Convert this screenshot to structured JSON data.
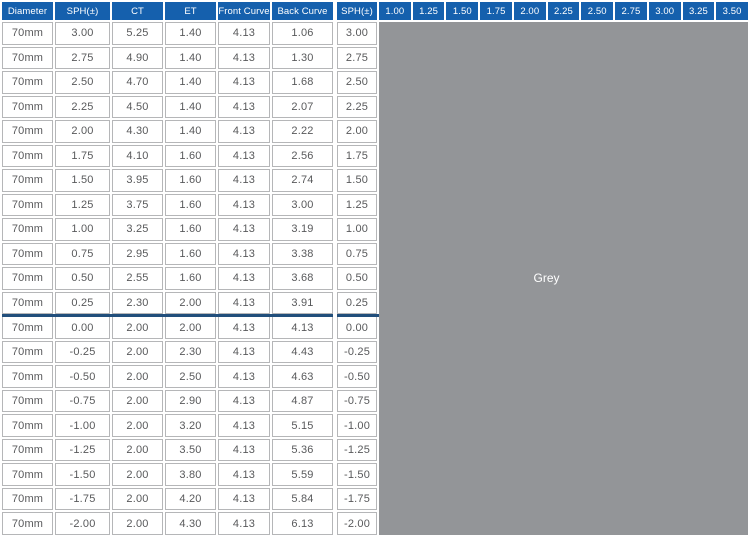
{
  "colors": {
    "header_bg": "#1560AD",
    "grey_fill": "#939598",
    "divider": "#214E7B",
    "cell_border": "#B5B6B8",
    "text": "#58595B"
  },
  "left_table": {
    "headers": [
      "Diameter",
      "SPH(±)",
      "CT",
      "ET",
      "Front Curve",
      "Back Curve"
    ],
    "rows": [
      [
        "70mm",
        "3.00",
        "5.25",
        "1.40",
        "4.13",
        "1.06"
      ],
      [
        "70mm",
        "2.75",
        "4.90",
        "1.40",
        "4.13",
        "1.30"
      ],
      [
        "70mm",
        "2.50",
        "4.70",
        "1.40",
        "4.13",
        "1.68"
      ],
      [
        "70mm",
        "2.25",
        "4.50",
        "1.40",
        "4.13",
        "2.07"
      ],
      [
        "70mm",
        "2.00",
        "4.30",
        "1.40",
        "4.13",
        "2.22"
      ],
      [
        "70mm",
        "1.75",
        "4.10",
        "1.60",
        "4.13",
        "2.56"
      ],
      [
        "70mm",
        "1.50",
        "3.95",
        "1.60",
        "4.13",
        "2.74"
      ],
      [
        "70mm",
        "1.25",
        "3.75",
        "1.60",
        "4.13",
        "3.00"
      ],
      [
        "70mm",
        "1.00",
        "3.25",
        "1.60",
        "4.13",
        "3.19"
      ],
      [
        "70mm",
        "0.75",
        "2.95",
        "1.60",
        "4.13",
        "3.38"
      ],
      [
        "70mm",
        "0.50",
        "2.55",
        "1.60",
        "4.13",
        "3.68"
      ],
      [
        "70mm",
        "0.25",
        "2.30",
        "2.00",
        "4.13",
        "3.91"
      ],
      [
        "70mm",
        "0.00",
        "2.00",
        "2.00",
        "4.13",
        "4.13"
      ],
      [
        "70mm",
        "-0.25",
        "2.00",
        "2.30",
        "4.13",
        "4.43"
      ],
      [
        "70mm",
        "-0.50",
        "2.00",
        "2.50",
        "4.13",
        "4.63"
      ],
      [
        "70mm",
        "-0.75",
        "2.00",
        "2.90",
        "4.13",
        "4.87"
      ],
      [
        "70mm",
        "-1.00",
        "2.00",
        "3.20",
        "4.13",
        "5.15"
      ],
      [
        "70mm",
        "-1.25",
        "2.00",
        "3.50",
        "4.13",
        "5.36"
      ],
      [
        "70mm",
        "-1.50",
        "2.00",
        "3.80",
        "4.13",
        "5.59"
      ],
      [
        "70mm",
        "-1.75",
        "2.00",
        "4.20",
        "4.13",
        "5.84"
      ],
      [
        "70mm",
        "-2.00",
        "2.00",
        "4.30",
        "4.13",
        "6.13"
      ]
    ],
    "divider_after_row": 11
  },
  "right_table": {
    "headers": [
      "SPH(±)",
      "1.00",
      "1.25",
      "1.50",
      "1.75",
      "2.00",
      "2.25",
      "2.50",
      "2.75",
      "3.00",
      "3.25",
      "3.50"
    ],
    "sph_values": [
      "3.00",
      "2.75",
      "2.50",
      "2.25",
      "2.00",
      "1.75",
      "1.50",
      "1.25",
      "1.00",
      "0.75",
      "0.50",
      "0.25",
      "0.00",
      "-0.25",
      "-0.50",
      "-0.75",
      "-1.00",
      "-1.25",
      "-1.50",
      "-1.75",
      "-2.00"
    ],
    "grey_label": "Grey",
    "divider_after_row": 11
  }
}
